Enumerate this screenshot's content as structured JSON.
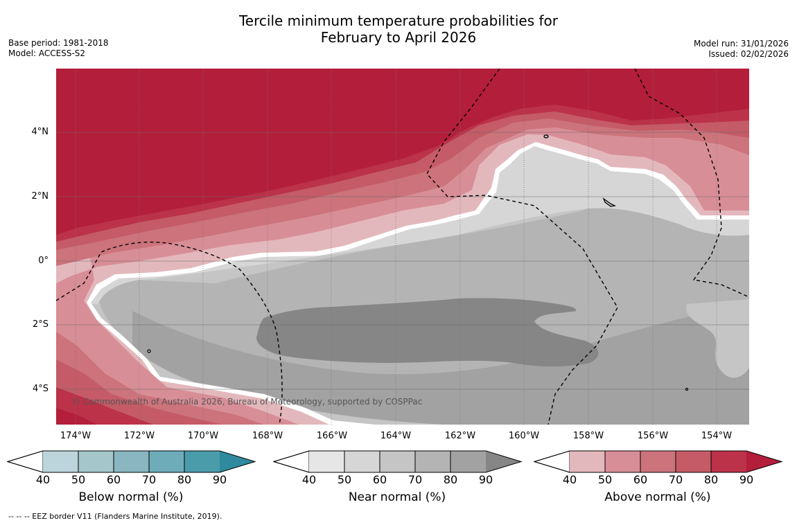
{
  "title": {
    "line1": "Tercile minimum temperature probabilities for",
    "line2": "February to April 2026"
  },
  "meta": {
    "base_period": "Base period: 1981-2018",
    "model": "Model: ACCESS-S2",
    "model_run": "Model run: 31/01/2026",
    "issued": "Issued: 02/02/2026"
  },
  "map": {
    "lat_labels": [
      "4°N",
      "2°N",
      "0°",
      "2°S",
      "4°S"
    ],
    "lon_labels": [
      "174°W",
      "172°W",
      "170°W",
      "168°W",
      "166°W",
      "164°W",
      "162°W",
      "160°W",
      "158°W",
      "156°W",
      "154°W"
    ],
    "copyright": "© Commonwealth of Australia 2026, Bureau of Meteorology, supported by COSPPac"
  },
  "legends": [
    {
      "title": "Below normal (%)",
      "ticks": [
        "40",
        "50",
        "60",
        "70",
        "80",
        "90"
      ],
      "colors": [
        "#bcd4db",
        "#a5c6cb",
        "#89b6c1",
        "#6eacba",
        "#4a9cab",
        "#2e8a9c"
      ]
    },
    {
      "title": "Near normal (%)",
      "ticks": [
        "40",
        "50",
        "60",
        "70",
        "80",
        "90"
      ],
      "colors": [
        "#e6e6e6",
        "#d6d6d6",
        "#c5c5c5",
        "#b4b4b4",
        "#a2a2a2",
        "#868686"
      ]
    },
    {
      "title": "Above normal (%)",
      "ticks": [
        "40",
        "50",
        "60",
        "70",
        "80",
        "90"
      ],
      "colors": [
        "#e3b8bc",
        "#d88e97",
        "#cc737c",
        "#c45b66",
        "#bb3249",
        "#b31e3b"
      ]
    }
  ],
  "footer": "-- -- -- EEZ border V11 (Flanders Marine Institute, 2019)."
}
